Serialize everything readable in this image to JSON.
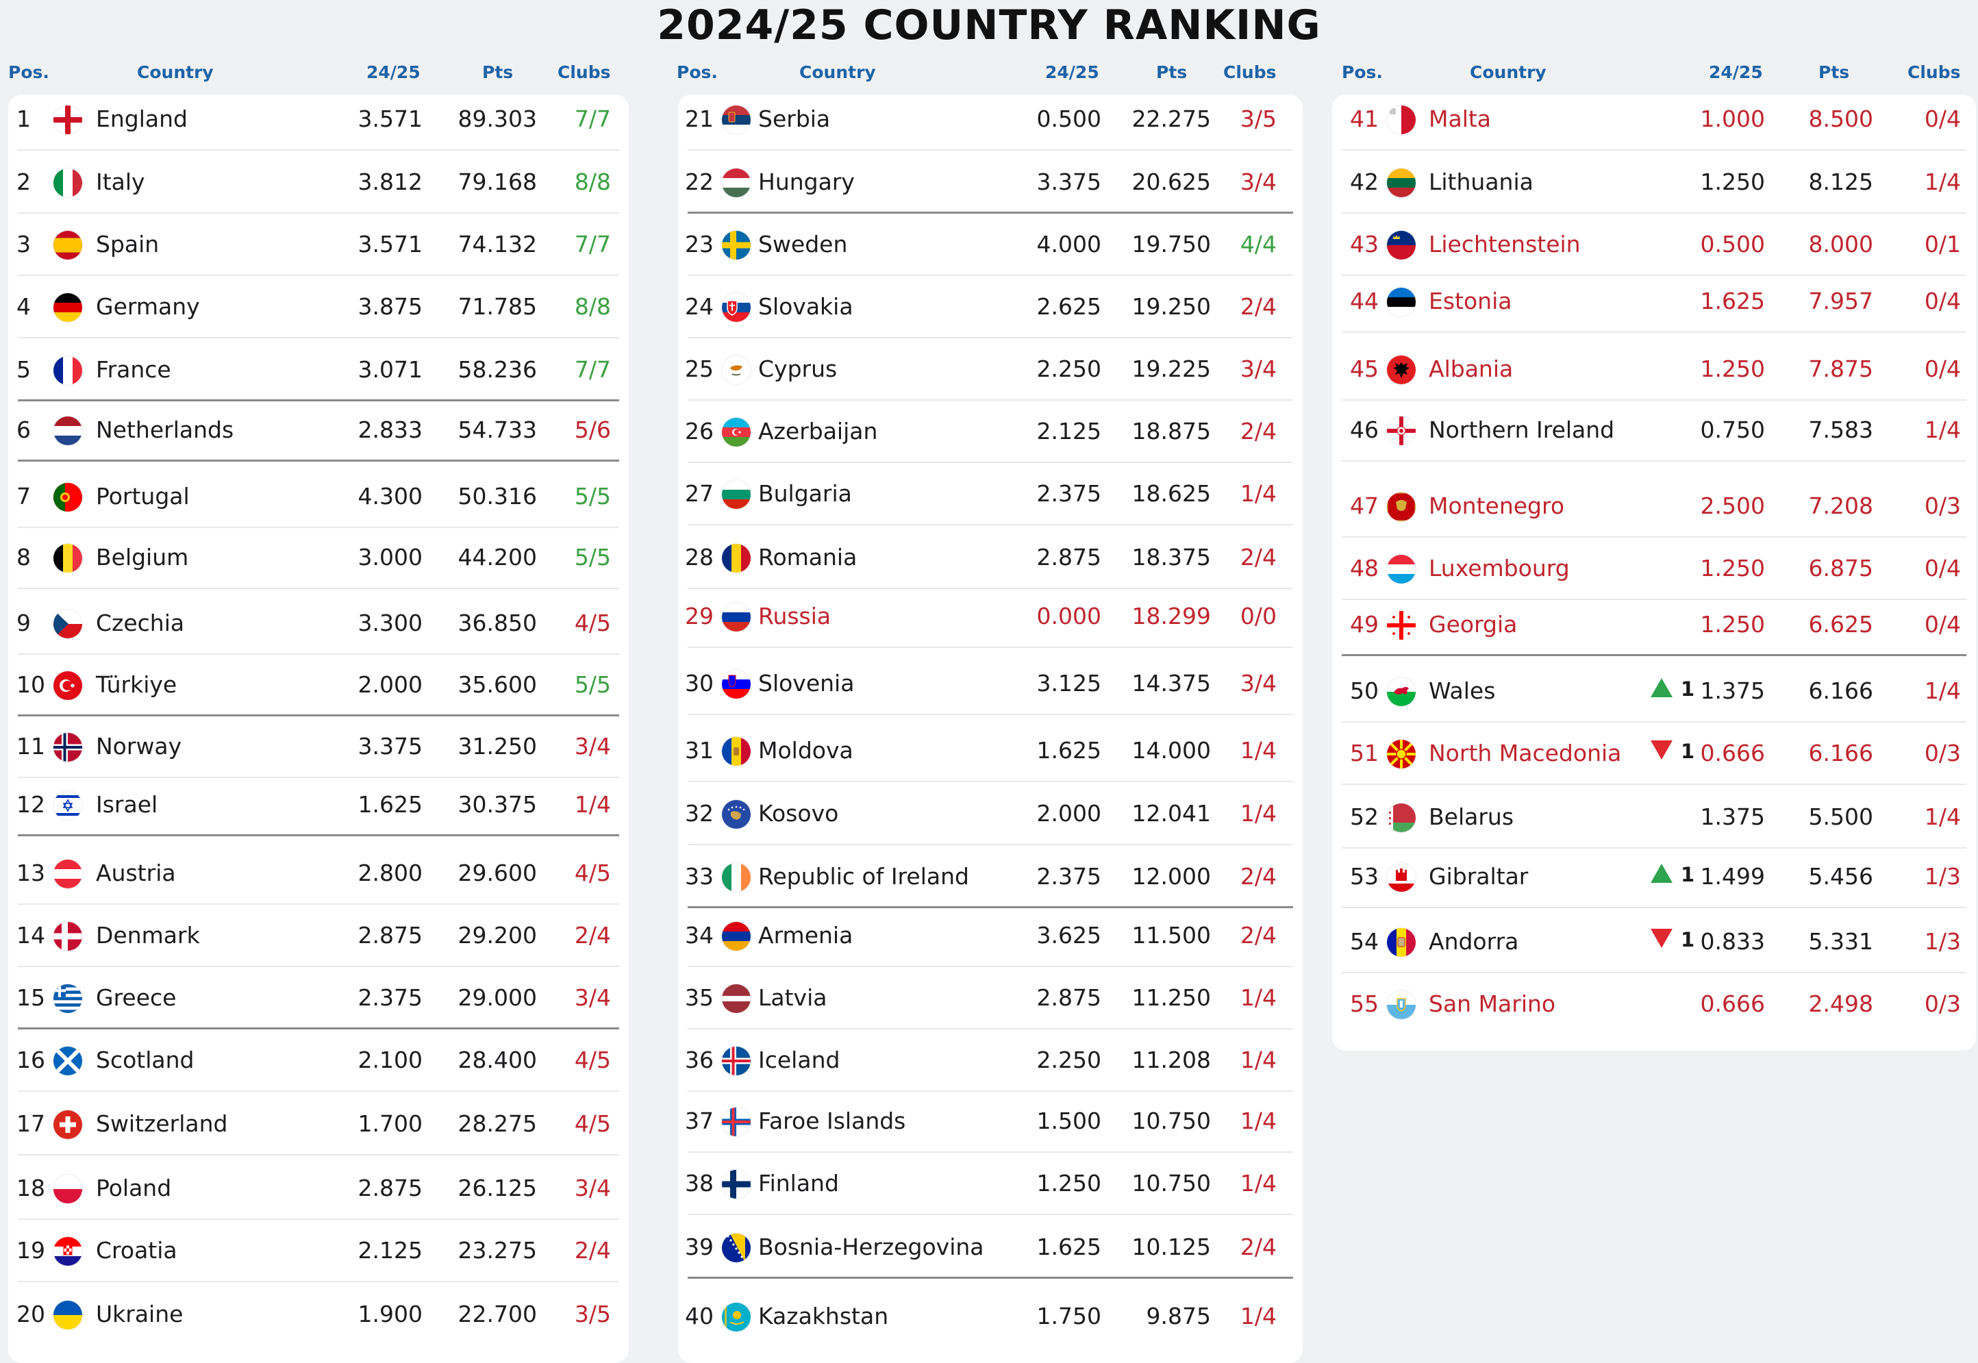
{
  "title": "2024/25 COUNTRY RANKING",
  "headers": {
    "pos": "Pos.",
    "country": "Country",
    "coef": "24/25",
    "pts": "Pts",
    "clubs": "Clubs"
  },
  "colors": {
    "header_blue": "#1e63a7",
    "red": "#c0242c",
    "green": "#3aa141",
    "up": "#2ea44f",
    "down": "#e0282f"
  },
  "rows": [
    {
      "pos": "1",
      "country": "England",
      "coef": "3.571",
      "pts": "89.303",
      "clubs": "7/7",
      "clubs_color": "green",
      "flag": "england"
    },
    {
      "pos": "2",
      "country": "Italy",
      "coef": "3.812",
      "pts": "79.168",
      "clubs": "8/8",
      "clubs_color": "green",
      "flag": "italy"
    },
    {
      "pos": "3",
      "country": "Spain",
      "coef": "3.571",
      "pts": "74.132",
      "clubs": "7/7",
      "clubs_color": "green",
      "flag": "spain"
    },
    {
      "pos": "4",
      "country": "Germany",
      "coef": "3.875",
      "pts": "71.785",
      "clubs": "8/8",
      "clubs_color": "green",
      "flag": "germany"
    },
    {
      "pos": "5",
      "country": "France",
      "coef": "3.071",
      "pts": "58.236",
      "clubs": "7/7",
      "clubs_color": "green",
      "flag": "france"
    },
    {
      "pos": "6",
      "country": "Netherlands",
      "coef": "2.833",
      "pts": "54.733",
      "clubs": "5/6",
      "clubs_color": "red",
      "flag": "netherlands"
    },
    {
      "pos": "7",
      "country": "Portugal",
      "coef": "4.300",
      "pts": "50.316",
      "clubs": "5/5",
      "clubs_color": "green",
      "flag": "portugal"
    },
    {
      "pos": "8",
      "country": "Belgium",
      "coef": "3.000",
      "pts": "44.200",
      "clubs": "5/5",
      "clubs_color": "green",
      "flag": "belgium"
    },
    {
      "pos": "9",
      "country": "Czechia",
      "coef": "3.300",
      "pts": "36.850",
      "clubs": "4/5",
      "clubs_color": "red",
      "flag": "czechia"
    },
    {
      "pos": "10",
      "country": "Türkiye",
      "coef": "2.000",
      "pts": "35.600",
      "clubs": "5/5",
      "clubs_color": "green",
      "flag": "turkiye"
    },
    {
      "pos": "11",
      "country": "Norway",
      "coef": "3.375",
      "pts": "31.250",
      "clubs": "3/4",
      "clubs_color": "red",
      "flag": "norway"
    },
    {
      "pos": "12",
      "country": "Israel",
      "coef": "1.625",
      "pts": "30.375",
      "clubs": "1/4",
      "clubs_color": "red",
      "flag": "israel"
    },
    {
      "pos": "13",
      "country": "Austria",
      "coef": "2.800",
      "pts": "29.600",
      "clubs": "4/5",
      "clubs_color": "red",
      "flag": "austria"
    },
    {
      "pos": "14",
      "country": "Denmark",
      "coef": "2.875",
      "pts": "29.200",
      "clubs": "2/4",
      "clubs_color": "red",
      "flag": "denmark"
    },
    {
      "pos": "15",
      "country": "Greece",
      "coef": "2.375",
      "pts": "29.000",
      "clubs": "3/4",
      "clubs_color": "red",
      "flag": "greece"
    },
    {
      "pos": "16",
      "country": "Scotland",
      "coef": "2.100",
      "pts": "28.400",
      "clubs": "4/5",
      "clubs_color": "red",
      "flag": "scotland"
    },
    {
      "pos": "17",
      "country": "Switzerland",
      "coef": "1.700",
      "pts": "28.275",
      "clubs": "4/5",
      "clubs_color": "red",
      "flag": "switzerland"
    },
    {
      "pos": "18",
      "country": "Poland",
      "coef": "2.875",
      "pts": "26.125",
      "clubs": "3/4",
      "clubs_color": "red",
      "flag": "poland"
    },
    {
      "pos": "19",
      "country": "Croatia",
      "coef": "2.125",
      "pts": "23.275",
      "clubs": "2/4",
      "clubs_color": "red",
      "flag": "croatia"
    },
    {
      "pos": "20",
      "country": "Ukraine",
      "coef": "1.900",
      "pts": "22.700",
      "clubs": "3/5",
      "clubs_color": "red",
      "flag": "ukraine"
    },
    {
      "pos": "21",
      "country": "Serbia",
      "coef": "0.500",
      "pts": "22.275",
      "clubs": "3/5",
      "clubs_color": "red",
      "flag": "serbia"
    },
    {
      "pos": "22",
      "country": "Hungary",
      "coef": "3.375",
      "pts": "20.625",
      "clubs": "3/4",
      "clubs_color": "red",
      "flag": "hungary"
    },
    {
      "pos": "23",
      "country": "Sweden",
      "coef": "4.000",
      "pts": "19.750",
      "clubs": "4/4",
      "clubs_color": "green",
      "flag": "sweden"
    },
    {
      "pos": "24",
      "country": "Slovakia",
      "coef": "2.625",
      "pts": "19.250",
      "clubs": "2/4",
      "clubs_color": "red",
      "flag": "slovakia"
    },
    {
      "pos": "25",
      "country": "Cyprus",
      "coef": "2.250",
      "pts": "19.225",
      "clubs": "3/4",
      "clubs_color": "red",
      "flag": "cyprus"
    },
    {
      "pos": "26",
      "country": "Azerbaijan",
      "coef": "2.125",
      "pts": "18.875",
      "clubs": "2/4",
      "clubs_color": "red",
      "flag": "azerbaijan"
    },
    {
      "pos": "27",
      "country": "Bulgaria",
      "coef": "2.375",
      "pts": "18.625",
      "clubs": "1/4",
      "clubs_color": "red",
      "flag": "bulgaria"
    },
    {
      "pos": "28",
      "country": "Romania",
      "coef": "2.875",
      "pts": "18.375",
      "clubs": "2/4",
      "clubs_color": "red",
      "flag": "romania"
    },
    {
      "pos": "29",
      "country": "Russia",
      "coef": "0.000",
      "pts": "18.299",
      "clubs": "0/0",
      "clubs_color": "red",
      "flag": "russia",
      "eliminated": true
    },
    {
      "pos": "30",
      "country": "Slovenia",
      "coef": "3.125",
      "pts": "14.375",
      "clubs": "3/4",
      "clubs_color": "red",
      "flag": "slovenia"
    },
    {
      "pos": "31",
      "country": "Moldova",
      "coef": "1.625",
      "pts": "14.000",
      "clubs": "1/4",
      "clubs_color": "red",
      "flag": "moldova"
    },
    {
      "pos": "32",
      "country": "Kosovo",
      "coef": "2.000",
      "pts": "12.041",
      "clubs": "1/4",
      "clubs_color": "red",
      "flag": "kosovo"
    },
    {
      "pos": "33",
      "country": "Republic of Ireland",
      "coef": "2.375",
      "pts": "12.000",
      "clubs": "2/4",
      "clubs_color": "red",
      "flag": "ireland"
    },
    {
      "pos": "34",
      "country": "Armenia",
      "coef": "3.625",
      "pts": "11.500",
      "clubs": "2/4",
      "clubs_color": "red",
      "flag": "armenia"
    },
    {
      "pos": "35",
      "country": "Latvia",
      "coef": "2.875",
      "pts": "11.250",
      "clubs": "1/4",
      "clubs_color": "red",
      "flag": "latvia"
    },
    {
      "pos": "36",
      "country": "Iceland",
      "coef": "2.250",
      "pts": "11.208",
      "clubs": "1/4",
      "clubs_color": "red",
      "flag": "iceland"
    },
    {
      "pos": "37",
      "country": "Faroe Islands",
      "coef": "1.500",
      "pts": "10.750",
      "clubs": "1/4",
      "clubs_color": "red",
      "flag": "faroe"
    },
    {
      "pos": "38",
      "country": "Finland",
      "coef": "1.250",
      "pts": "10.750",
      "clubs": "1/4",
      "clubs_color": "red",
      "flag": "finland"
    },
    {
      "pos": "39",
      "country": "Bosnia-Herzegovina",
      "coef": "1.625",
      "pts": "10.125",
      "clubs": "2/4",
      "clubs_color": "red",
      "flag": "bosnia"
    },
    {
      "pos": "40",
      "country": "Kazakhstan",
      "coef": "1.750",
      "pts": "9.875",
      "clubs": "1/4",
      "clubs_color": "red",
      "flag": "kazakhstan"
    },
    {
      "pos": "41",
      "country": "Malta",
      "coef": "1.000",
      "pts": "8.500",
      "clubs": "0/4",
      "clubs_color": "red",
      "flag": "malta",
      "eliminated": true
    },
    {
      "pos": "42",
      "country": "Lithuania",
      "coef": "1.250",
      "pts": "8.125",
      "clubs": "1/4",
      "clubs_color": "red",
      "flag": "lithuania"
    },
    {
      "pos": "43",
      "country": "Liechtenstein",
      "coef": "0.500",
      "pts": "8.000",
      "clubs": "0/1",
      "clubs_color": "red",
      "flag": "liechtenstein",
      "eliminated": true
    },
    {
      "pos": "44",
      "country": "Estonia",
      "coef": "1.625",
      "pts": "7.957",
      "clubs": "0/4",
      "clubs_color": "red",
      "flag": "estonia",
      "eliminated": true
    },
    {
      "pos": "45",
      "country": "Albania",
      "coef": "1.250",
      "pts": "7.875",
      "clubs": "0/4",
      "clubs_color": "red",
      "flag": "albania",
      "eliminated": true
    },
    {
      "pos": "46",
      "country": "Northern Ireland",
      "coef": "0.750",
      "pts": "7.583",
      "clubs": "1/4",
      "clubs_color": "red",
      "flag": "northern_ireland"
    },
    {
      "pos": "47",
      "country": "Montenegro",
      "coef": "2.500",
      "pts": "7.208",
      "clubs": "0/3",
      "clubs_color": "red",
      "flag": "montenegro",
      "eliminated": true
    },
    {
      "pos": "48",
      "country": "Luxembourg",
      "coef": "1.250",
      "pts": "6.875",
      "clubs": "0/4",
      "clubs_color": "red",
      "flag": "luxembourg",
      "eliminated": true
    },
    {
      "pos": "49",
      "country": "Georgia",
      "coef": "1.250",
      "pts": "6.625",
      "clubs": "0/4",
      "clubs_color": "red",
      "flag": "georgia",
      "eliminated": true
    },
    {
      "pos": "50",
      "country": "Wales",
      "coef": "1.375",
      "pts": "6.166",
      "clubs": "1/4",
      "clubs_color": "red",
      "flag": "wales",
      "change": "up",
      "change_value": "1"
    },
    {
      "pos": "51",
      "country": "North Macedonia",
      "coef": "0.666",
      "pts": "6.166",
      "clubs": "0/3",
      "clubs_color": "red",
      "flag": "north_macedonia",
      "eliminated": true,
      "change": "down",
      "change_value": "1"
    },
    {
      "pos": "52",
      "country": "Belarus",
      "coef": "1.375",
      "pts": "5.500",
      "clubs": "1/4",
      "clubs_color": "red",
      "flag": "belarus"
    },
    {
      "pos": "53",
      "country": "Gibraltar",
      "coef": "1.499",
      "pts": "5.456",
      "clubs": "1/3",
      "clubs_color": "red",
      "flag": "gibraltar",
      "change": "up",
      "change_value": "1"
    },
    {
      "pos": "54",
      "country": "Andorra",
      "coef": "0.833",
      "pts": "5.331",
      "clubs": "1/3",
      "clubs_color": "red",
      "flag": "andorra",
      "change": "down",
      "change_value": "1"
    },
    {
      "pos": "55",
      "country": "San Marino",
      "coef": "0.666",
      "pts": "2.498",
      "clubs": "0/3",
      "clubs_color": "red",
      "flag": "san_marino",
      "eliminated": true
    }
  ]
}
